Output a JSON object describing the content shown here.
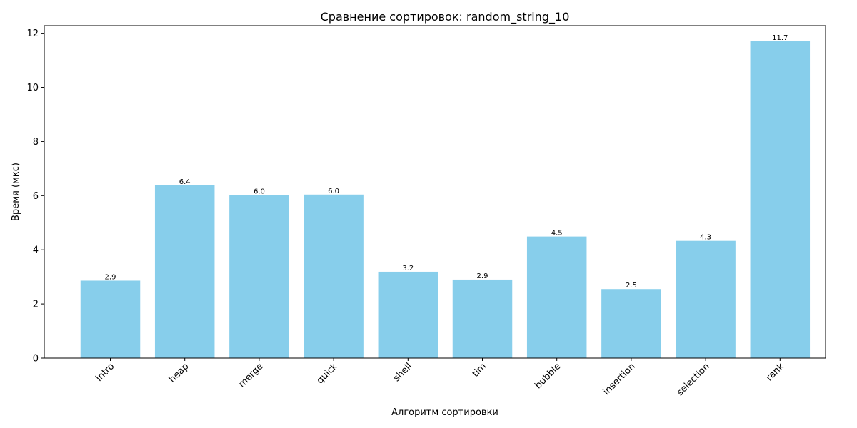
{
  "chart_data": {
    "type": "bar",
    "title": "Сравнение сортировок: random_string_10",
    "xlabel": "Алгоритм сортировки",
    "ylabel": "Время (мкс)",
    "categories": [
      "intro",
      "heap",
      "merge",
      "quick",
      "shell",
      "tim",
      "bubble",
      "insertion",
      "selection",
      "rank"
    ],
    "values": [
      2.86,
      6.38,
      6.02,
      6.04,
      3.19,
      2.9,
      4.49,
      2.55,
      4.33,
      11.7
    ],
    "data_labels": [
      "2.9",
      "6.4",
      "6.0",
      "6.0",
      "3.2",
      "2.9",
      "4.5",
      "2.5",
      "4.3",
      "11.7"
    ],
    "ylim": [
      0,
      12.28
    ],
    "yticks": [
      0,
      2,
      4,
      6,
      8,
      10,
      12
    ],
    "ytick_labels": [
      "0",
      "2",
      "4",
      "6",
      "8",
      "10",
      "12"
    ],
    "bar_color": "#87CEEB",
    "grid": false,
    "legend": "none"
  }
}
